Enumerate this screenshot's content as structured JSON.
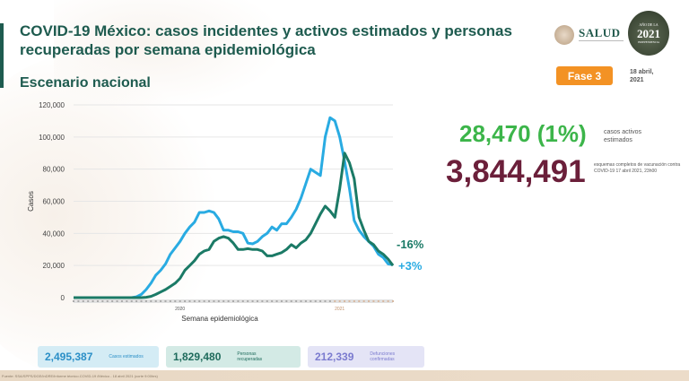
{
  "header": {
    "title": "COVID-19 México: casos incidentes y activos estimados y personas recuperadas por semana epidemiológica",
    "subtitle": "Escenario nacional",
    "logo_text": "SALUD",
    "logo_subtext": "SECRETARÍA DE SALUD",
    "emblem_small_top": "AÑO DE LA",
    "emblem_year": "2021",
    "emblem_small_bottom": "INDEPENDENCIA",
    "phase_label": "Fase 3",
    "date_line1": "18 abril,",
    "date_line2": "2021"
  },
  "stats": {
    "active_cases": "28,470 (1%)",
    "active_cases_label": "casos activos estimados",
    "vaccination": "3,844,491",
    "vaccination_label": "esquemas completos de vacunación contra COVID-19 17 abril 2021, 23h00"
  },
  "cards": [
    {
      "value": "2,495,387",
      "label": "Casos estimados"
    },
    {
      "value": "1,829,480",
      "label": "Personas recuperadas"
    },
    {
      "value": "212,339",
      "label": "Defunciones confirmadas"
    }
  ],
  "footer": {
    "source": "Fuente: SSA/SPPS/DGE/InDRE/Informe técnico.COVID-19 /México - 18 abril 2021 (corte 9:00hrs)"
  },
  "colors": {
    "estimated": "#29abe2",
    "recovered": "#1b7a66",
    "title": "#1e5b4f",
    "phase": "#f39224",
    "active": "#3cb54a",
    "vaccination": "#6b1f3a"
  },
  "chart_data": {
    "type": "line",
    "title": "",
    "xlabel": "Semana epidemiológica",
    "ylabel": "Casos",
    "ylim": [
      0,
      120000
    ],
    "yticks": [
      0,
      20000,
      40000,
      60000,
      80000,
      100000,
      120000
    ],
    "ytick_labels": [
      "0",
      "20,000",
      "40,000",
      "60,000",
      "80,000",
      "100,000",
      "120,000"
    ],
    "year_labels": [
      {
        "label": "2020",
        "at_week_index": 22
      },
      {
        "label": "2021",
        "at_week_index": 55
      }
    ],
    "grid": true,
    "annotations": [
      {
        "text": "-16%",
        "series": "Personas recuperadas"
      },
      {
        "text": "+3%",
        "series": "Casos estimados"
      }
    ],
    "x": [
      1,
      2,
      3,
      4,
      5,
      6,
      7,
      8,
      9,
      10,
      11,
      12,
      13,
      14,
      15,
      16,
      17,
      18,
      19,
      20,
      21,
      22,
      23,
      24,
      25,
      26,
      27,
      28,
      29,
      30,
      31,
      32,
      33,
      34,
      35,
      36,
      37,
      38,
      39,
      40,
      41,
      42,
      43,
      44,
      45,
      46,
      47,
      48,
      49,
      50,
      51,
      52,
      53,
      54,
      55,
      56,
      57,
      58,
      59,
      60,
      61,
      62,
      63,
      64,
      65,
      66,
      67
    ],
    "series": [
      {
        "name": "Casos estimados",
        "values": [
          0,
          0,
          0,
          0,
          0,
          0,
          0,
          0,
          0,
          0,
          0,
          0,
          0,
          500,
          2000,
          5000,
          9000,
          14000,
          17000,
          21000,
          27000,
          31000,
          35000,
          40000,
          44000,
          47000,
          53000,
          53000,
          54000,
          53000,
          49000,
          42000,
          42000,
          41000,
          41000,
          40000,
          34000,
          33500,
          35000,
          38000,
          40000,
          44000,
          42000,
          46000,
          46000,
          50000,
          55000,
          62000,
          71000,
          80000,
          78000,
          76000,
          100000,
          112000,
          110000,
          100000,
          85000,
          68000,
          48000,
          42000,
          38000,
          35000,
          32000,
          27000,
          25000,
          21000,
          20500
        ]
      },
      {
        "name": "Personas recuperadas",
        "values": [
          0,
          0,
          0,
          0,
          0,
          0,
          0,
          0,
          0,
          0,
          0,
          0,
          0,
          0,
          0,
          200,
          800,
          2000,
          3500,
          5000,
          7000,
          9000,
          12000,
          17000,
          20000,
          23000,
          27000,
          29000,
          30000,
          35000,
          37000,
          38000,
          37000,
          34000,
          30000,
          30000,
          30500,
          30000,
          30000,
          29000,
          26000,
          26000,
          27000,
          28000,
          30000,
          33000,
          31000,
          34000,
          36000,
          40000,
          46000,
          52000,
          57000,
          54000,
          50000,
          68000,
          90000,
          84000,
          74000,
          50000,
          42000,
          35000,
          33000,
          29000,
          27000,
          24000,
          20000
        ]
      }
    ]
  }
}
